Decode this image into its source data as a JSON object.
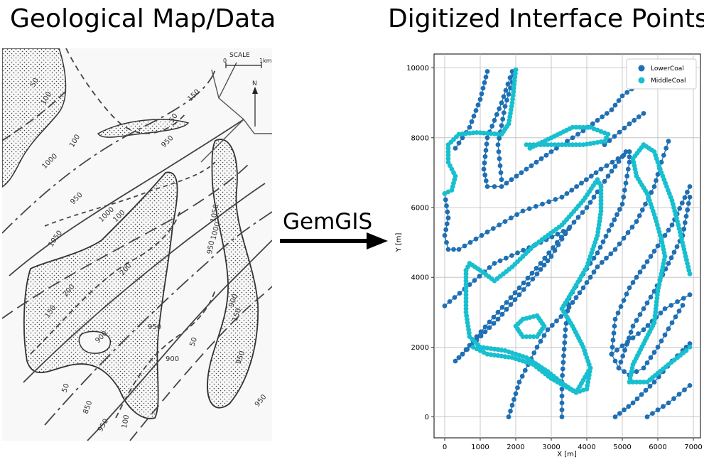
{
  "titles": {
    "left": "Geological Map/Data",
    "right": "Digitized Interface Points"
  },
  "arrow_label": "GemGIS",
  "map": {
    "scale_label": "SCALE",
    "scale_zero": "0",
    "scale_end": "1km",
    "north": "N",
    "contour_labels": [
      "50",
      "100",
      "100",
      "50",
      "150",
      "950",
      "1000",
      "950",
      "1050",
      "1000",
      "950",
      "200",
      "200",
      "150",
      "900",
      "950",
      "900",
      "850",
      "950",
      "50",
      "150",
      "100",
      "100",
      "900",
      "950",
      "1050",
      "950",
      "1000",
      "50"
    ]
  },
  "colors": {
    "lower": "#1f6fb4",
    "middle": "#17bfcf"
  },
  "chart_data": {
    "type": "scatter",
    "title": "",
    "xlabel": "X [m]",
    "ylabel": "Y [m]",
    "xlim": [
      -300,
      7200
    ],
    "ylim": [
      -600,
      10400
    ],
    "xticks": [
      0,
      1000,
      2000,
      3000,
      4000,
      5000,
      6000,
      7000
    ],
    "yticks": [
      0,
      2000,
      4000,
      6000,
      8000,
      10000
    ],
    "grid": true,
    "legend_position": "top-right",
    "series": [
      {
        "name": "LowerCoal",
        "color": "#1f6fb4",
        "lines": [
          [
            [
              0,
              3180
            ],
            [
              1400,
              4400
            ],
            [
              2700,
              5000
            ],
            [
              3500,
              5400
            ]
          ],
          [
            [
              3500,
              5400
            ],
            [
              3300,
              5100
            ],
            [
              3000,
              4600
            ],
            [
              2600,
              4100
            ],
            [
              2100,
              3500
            ],
            [
              1500,
              2800
            ],
            [
              900,
              2200
            ],
            [
              500,
              1800
            ],
            [
              300,
              1600
            ],
            [
              500,
              1800
            ],
            [
              900,
              2300
            ],
            [
              1500,
              3000
            ],
            [
              2100,
              3700
            ],
            [
              2700,
              4400
            ],
            [
              3400,
              5300
            ],
            [
              4000,
              6000
            ],
            [
              4600,
              6900
            ],
            [
              5100,
              7600
            ]
          ],
          [
            [
              0,
              6400
            ],
            [
              100,
              5700
            ],
            [
              0,
              5200
            ],
            [
              100,
              4800
            ],
            [
              400,
              4800
            ],
            [
              1200,
              5300
            ],
            [
              2200,
              5900
            ],
            [
              3300,
              6300
            ],
            [
              4400,
              7100
            ],
            [
              5200,
              7600
            ]
          ],
          [
            [
              5200,
              7600
            ],
            [
              5200,
              7300
            ],
            [
              5100,
              6700
            ],
            [
              5000,
              6100
            ],
            [
              4700,
              5500
            ],
            [
              4300,
              4700
            ],
            [
              3900,
              4100
            ],
            [
              3500,
              3400
            ],
            [
              3400,
              2500
            ],
            [
              3300,
              1000
            ],
            [
              3300,
              0
            ]
          ],
          [
            [
              300,
              7700
            ],
            [
              700,
              8300
            ],
            [
              1000,
              9100
            ],
            [
              1200,
              9900
            ]
          ],
          [
            [
              1900,
              9900
            ],
            [
              1600,
              9000
            ],
            [
              1200,
              8000
            ],
            [
              1100,
              7100
            ],
            [
              1200,
              6600
            ],
            [
              1600,
              6600
            ],
            [
              2300,
              7100
            ],
            [
              3000,
              7600
            ],
            [
              3900,
              8200
            ],
            [
              4700,
              8800
            ],
            [
              5000,
              9200
            ],
            [
              5400,
              9500
            ]
          ],
          [
            [
              2000,
              9950
            ],
            [
              1700,
              8900
            ],
            [
              1500,
              7800
            ],
            [
              1600,
              6800
            ]
          ],
          [
            [
              4500,
              7800
            ],
            [
              5200,
              8400
            ],
            [
              5600,
              8700
            ]
          ],
          [
            [
              1800,
              0
            ],
            [
              2100,
              1000
            ],
            [
              2600,
              2000
            ],
            [
              2900,
              2500
            ],
            [
              3400,
              3000
            ],
            [
              3900,
              3700
            ],
            [
              4300,
              4300
            ],
            [
              4800,
              4800
            ],
            [
              5400,
              5600
            ],
            [
              5900,
              6600
            ],
            [
              6100,
              7300
            ],
            [
              6300,
              7900
            ]
          ],
          [
            [
              4800,
              0
            ],
            [
              5300,
              400
            ],
            [
              5900,
              1000
            ],
            [
              6400,
              1600
            ],
            [
              6700,
              1900
            ],
            [
              6900,
              2100
            ]
          ],
          [
            [
              5700,
              0
            ],
            [
              6300,
              400
            ],
            [
              6900,
              900
            ]
          ],
          [
            [
              4700,
              1800
            ],
            [
              5600,
              2500
            ],
            [
              6200,
              3100
            ],
            [
              6900,
              3500
            ]
          ],
          [
            [
              4700,
              1800
            ],
            [
              4800,
              2800
            ],
            [
              5200,
              3700
            ],
            [
              5800,
              4600
            ],
            [
              6400,
              5500
            ],
            [
              6900,
              6600
            ]
          ],
          [
            [
              4700,
              1800
            ],
            [
              4900,
              1400
            ],
            [
              5200,
              1200
            ],
            [
              5600,
              1400
            ],
            [
              6000,
              2000
            ],
            [
              6400,
              2700
            ],
            [
              6700,
              3200
            ]
          ],
          [
            [
              4900,
              1400
            ],
            [
              5300,
              2600
            ],
            [
              5900,
              3600
            ],
            [
              6300,
              4400
            ],
            [
              6700,
              5200
            ],
            [
              6900,
              6300
            ]
          ]
        ]
      },
      {
        "name": "MiddleCoal",
        "color": "#17bfcf",
        "lines": [
          [
            [
              0,
              6400
            ],
            [
              200,
              6500
            ],
            [
              300,
              6900
            ],
            [
              100,
              7300
            ],
            [
              100,
              7800
            ],
            [
              400,
              8100
            ],
            [
              900,
              8150
            ],
            [
              1600,
              8100
            ],
            [
              1800,
              8400
            ],
            [
              1900,
              9000
            ],
            [
              2000,
              9950
            ]
          ],
          [
            [
              2400,
              7700
            ],
            [
              3000,
              8000
            ],
            [
              3600,
              8300
            ],
            [
              4100,
              8300
            ],
            [
              4600,
              8100
            ],
            [
              4500,
              7900
            ],
            [
              3900,
              7800
            ],
            [
              3300,
              7800
            ],
            [
              2700,
              7800
            ],
            [
              2300,
              7800
            ]
          ],
          [
            [
              600,
              4200
            ],
            [
              700,
              4400
            ],
            [
              1000,
              4200
            ],
            [
              1400,
              3900
            ],
            [
              1900,
              4300
            ],
            [
              2500,
              4900
            ],
            [
              3300,
              5500
            ],
            [
              3900,
              6200
            ],
            [
              4300,
              6800
            ],
            [
              4400,
              6600
            ],
            [
              4400,
              5900
            ],
            [
              4300,
              5200
            ],
            [
              4000,
              4300
            ],
            [
              3600,
              3600
            ],
            [
              3300,
              3100
            ],
            [
              3600,
              2600
            ],
            [
              3900,
              2000
            ],
            [
              4100,
              1400
            ],
            [
              4000,
              800
            ],
            [
              3700,
              700
            ],
            [
              3400,
              900
            ],
            [
              2900,
              1300
            ],
            [
              2300,
              1700
            ],
            [
              1700,
              1900
            ],
            [
              1000,
              2000
            ],
            [
              700,
              2300
            ],
            [
              600,
              3000
            ],
            [
              600,
              3700
            ],
            [
              600,
              4200
            ]
          ],
          [
            [
              2200,
              2800
            ],
            [
              2600,
              2900
            ],
            [
              2800,
              2600
            ],
            [
              2600,
              2300
            ],
            [
              2200,
              2300
            ],
            [
              2000,
              2600
            ],
            [
              2200,
              2800
            ]
          ],
          [
            [
              800,
              2000
            ],
            [
              1200,
              1800
            ],
            [
              1900,
              1700
            ],
            [
              2500,
              1500
            ],
            [
              3000,
              1100
            ],
            [
              3700,
              700
            ],
            [
              4100,
              1400
            ]
          ],
          [
            [
              5600,
              7800
            ],
            [
              5900,
              7600
            ],
            [
              6100,
              7000
            ],
            [
              6400,
              6200
            ],
            [
              6600,
              5400
            ],
            [
              6900,
              4100
            ]
          ],
          [
            [
              5600,
              7800
            ],
            [
              5300,
              7400
            ],
            [
              5400,
              6900
            ],
            [
              5700,
              6400
            ],
            [
              5900,
              5800
            ],
            [
              6100,
              5100
            ],
            [
              6200,
              4600
            ],
            [
              6000,
              3600
            ],
            [
              5900,
              2700
            ],
            [
              5600,
              2100
            ],
            [
              5300,
              1500
            ],
            [
              5200,
              1000
            ],
            [
              5700,
              1000
            ],
            [
              6300,
              1500
            ],
            [
              6800,
              1900
            ],
            [
              6900,
              2000
            ]
          ]
        ]
      }
    ]
  }
}
